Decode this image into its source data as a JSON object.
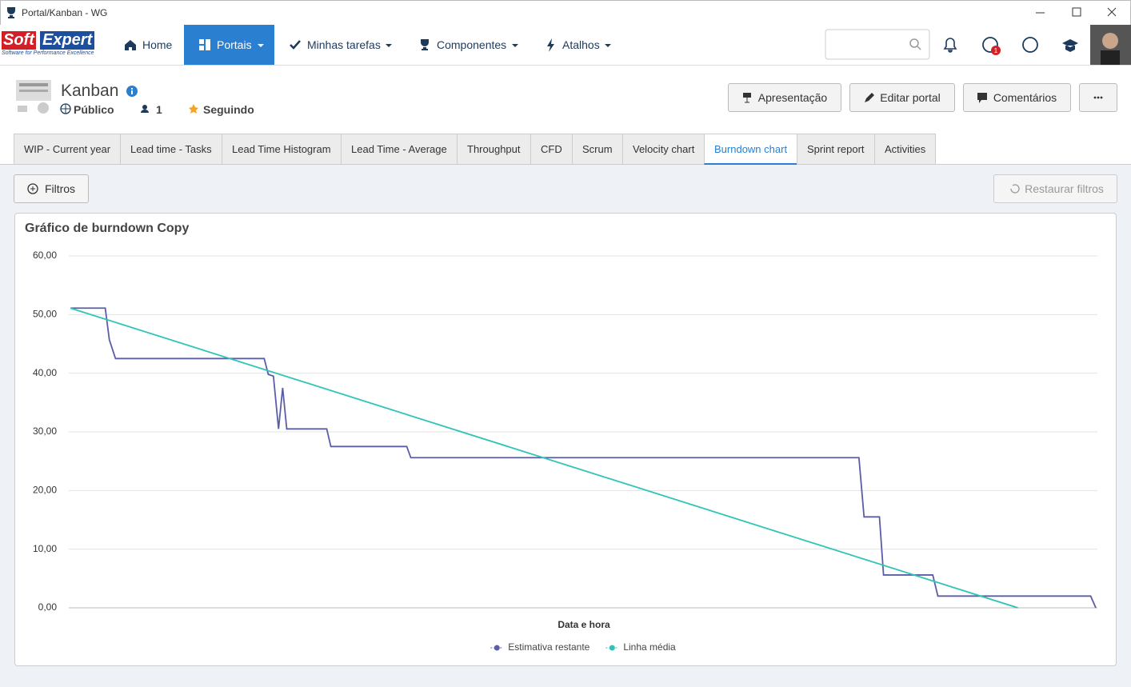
{
  "window": {
    "title": "Portal/Kanban - WG"
  },
  "nav": {
    "logo_soft": "Soft",
    "logo_expert": "Expert",
    "logo_tagline": "Software for Performance Excellence",
    "items": [
      "Home",
      "Portais",
      "Minhas tarefas",
      "Componentes",
      "Atalhos"
    ],
    "active": 1,
    "notification_count": "1"
  },
  "header": {
    "title": "Kanban",
    "visibility": "Público",
    "members": "1",
    "follow": "Seguindo",
    "buttons": [
      "Apresentação",
      "Editar portal",
      "Comentários"
    ]
  },
  "tabs": {
    "items": [
      "WIP - Current year",
      "Lead time - Tasks",
      "Lead Time Histogram",
      "Lead Time - Average",
      "Throughput",
      "CFD",
      "Scrum",
      "Velocity chart",
      "Burndown chart",
      "Sprint report",
      "Activities"
    ],
    "active": 8
  },
  "filters": {
    "add": "Filtros",
    "reset": "Restaurar filtros"
  },
  "chart_data": {
    "type": "line",
    "title": "Gráfico de burndown Copy",
    "xlabel": "Data e hora",
    "xlim": [
      0,
      100
    ],
    "ylim": [
      0,
      60
    ],
    "yticks": [
      {
        "value": 0,
        "label": "0,00"
      },
      {
        "value": 10,
        "label": "10,00"
      },
      {
        "value": 20,
        "label": "20,00"
      },
      {
        "value": 30,
        "label": "30,00"
      },
      {
        "value": 40,
        "label": "40,00"
      },
      {
        "value": 50,
        "label": "50,00"
      },
      {
        "value": 60,
        "label": "60,00"
      }
    ],
    "grid": true,
    "legend": "bottom",
    "series": [
      {
        "name": "Estimativa restante",
        "color": "#5b5ea6",
        "x": [
          0,
          3.4,
          3.8,
          4.4,
          18.9,
          19.3,
          19.8,
          20.3,
          20.7,
          21.1,
          25.0,
          25.4,
          32.8,
          33.2,
          76.9,
          77.4,
          78.9,
          79.3,
          84.1,
          84.6,
          99.5,
          100
        ],
        "values": [
          51.1,
          51.1,
          45.7,
          42.5,
          42.5,
          39.8,
          39.5,
          30.5,
          37.5,
          30.5,
          30.5,
          27.5,
          27.5,
          25.6,
          25.6,
          15.5,
          15.5,
          5.6,
          5.6,
          2.0,
          2.0,
          0
        ]
      },
      {
        "name": "Linha média",
        "color": "#2ec4b6",
        "x": [
          0,
          92.4
        ],
        "values": [
          51.1,
          0
        ]
      }
    ]
  }
}
